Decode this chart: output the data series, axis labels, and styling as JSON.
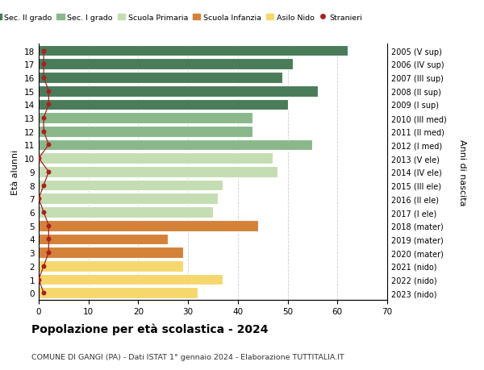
{
  "ages": [
    18,
    17,
    16,
    15,
    14,
    13,
    12,
    11,
    10,
    9,
    8,
    7,
    6,
    5,
    4,
    3,
    2,
    1,
    0
  ],
  "right_labels": [
    "2005 (V sup)",
    "2006 (IV sup)",
    "2007 (III sup)",
    "2008 (II sup)",
    "2009 (I sup)",
    "2010 (III med)",
    "2011 (II med)",
    "2012 (I med)",
    "2013 (V ele)",
    "2014 (IV ele)",
    "2015 (III ele)",
    "2016 (II ele)",
    "2017 (I ele)",
    "2018 (mater)",
    "2019 (mater)",
    "2020 (mater)",
    "2021 (nido)",
    "2022 (nido)",
    "2023 (nido)"
  ],
  "bar_values": [
    62,
    51,
    49,
    56,
    50,
    43,
    43,
    55,
    47,
    48,
    37,
    36,
    35,
    44,
    26,
    29,
    29,
    37,
    32
  ],
  "stranieri_values": [
    1,
    1,
    1,
    2,
    2,
    1,
    1,
    2,
    0,
    2,
    1,
    0,
    1,
    2,
    2,
    2,
    1,
    0,
    1
  ],
  "bar_colors": [
    "#4a7c59",
    "#4a7c59",
    "#4a7c59",
    "#4a7c59",
    "#4a7c59",
    "#8ab88a",
    "#8ab88a",
    "#8ab88a",
    "#c5ddb2",
    "#c5ddb2",
    "#c5ddb2",
    "#c5ddb2",
    "#c5ddb2",
    "#d4823a",
    "#d4823a",
    "#d4823a",
    "#f5d76e",
    "#f5d76e",
    "#f5d76e"
  ],
  "legend_labels": [
    "Sec. II grado",
    "Sec. I grado",
    "Scuola Primaria",
    "Scuola Infanzia",
    "Asilo Nido",
    "Stranieri"
  ],
  "legend_colors": [
    "#4a7c59",
    "#8ab88a",
    "#c5ddb2",
    "#d4823a",
    "#f5d76e",
    "#a82020"
  ],
  "title": "Popolazione per età scolastica - 2024",
  "subtitle": "COMUNE DI GANGI (PA) - Dati ISTAT 1° gennaio 2024 - Elaborazione TUTTITALIA.IT",
  "ylabel": "Età alunni",
  "right_ylabel": "Anni di nascita",
  "xlim": [
    0,
    70
  ],
  "xticks": [
    0,
    10,
    20,
    30,
    40,
    50,
    60,
    70
  ],
  "ylim": [
    -0.5,
    18.5
  ],
  "bar_height": 0.82,
  "stranieri_color": "#a82020",
  "stranieri_line_color": "#a82020"
}
